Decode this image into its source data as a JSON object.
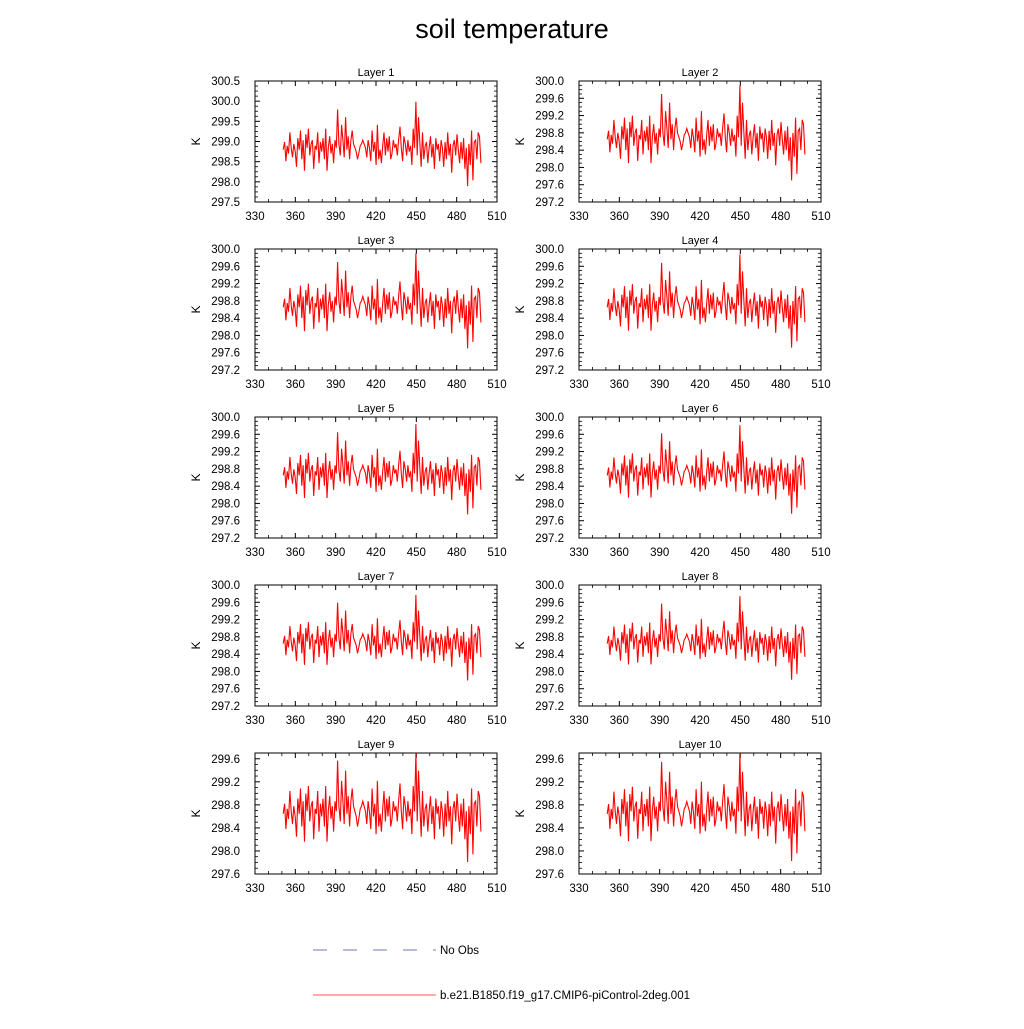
{
  "title": "soil temperature",
  "chart_data": {
    "type": "line",
    "title": "soil temperature",
    "xlim": [
      330,
      510
    ],
    "xticks": [
      330,
      360,
      390,
      420,
      450,
      480,
      510
    ],
    "xticklabels": [
      "330",
      "360",
      "390",
      "420",
      "450",
      "480",
      "510"
    ],
    "x_start": 351,
    "x_end": 498,
    "ylabel": "K",
    "series_name": "b.e21.B1850.f19_g17.CMIP6-piControl-2deg.001",
    "series_color": "#ff0000",
    "panels": [
      {
        "title": "Layer 1",
        "ylim": [
          297.5,
          300.5
        ],
        "yticks": [
          297.5,
          298.0,
          298.5,
          299.0,
          299.5,
          300.0,
          300.5
        ],
        "yticklabels": [
          "297.5",
          "298.0",
          "298.5",
          "299.0",
          "299.5",
          "300.0",
          "300.5"
        ],
        "mean": 298.75,
        "amp": 0.95
      },
      {
        "title": "Layer 2",
        "ylim": [
          297.2,
          300.0
        ],
        "yticks": [
          297.2,
          297.6,
          298.0,
          298.4,
          298.8,
          299.2,
          299.6,
          300.0
        ],
        "yticklabels": [
          "297.2",
          "297.6",
          "298.0",
          "298.4",
          "298.8",
          "299.2",
          "299.6",
          "300.0"
        ],
        "mean": 298.6,
        "amp": 1.0
      },
      {
        "title": "Layer 3",
        "ylim": [
          297.2,
          300.0
        ],
        "yticks": [
          297.2,
          297.6,
          298.0,
          298.4,
          298.8,
          299.2,
          299.6,
          300.0
        ],
        "yticklabels": [
          "297.2",
          "297.6",
          "298.0",
          "298.4",
          "298.8",
          "299.2",
          "299.6",
          "300.0"
        ],
        "mean": 298.6,
        "amp": 1.0
      },
      {
        "title": "Layer 4",
        "ylim": [
          297.2,
          300.0
        ],
        "yticks": [
          297.2,
          297.6,
          298.0,
          298.4,
          298.8,
          299.2,
          299.6,
          300.0
        ],
        "yticklabels": [
          "297.2",
          "297.6",
          "298.0",
          "298.4",
          "298.8",
          "299.2",
          "299.6",
          "300.0"
        ],
        "mean": 298.6,
        "amp": 0.98
      },
      {
        "title": "Layer 5",
        "ylim": [
          297.2,
          300.0
        ],
        "yticks": [
          297.2,
          297.6,
          298.0,
          298.4,
          298.8,
          299.2,
          299.6,
          300.0
        ],
        "yticklabels": [
          "297.2",
          "297.6",
          "298.0",
          "298.4",
          "298.8",
          "299.2",
          "299.6",
          "300.0"
        ],
        "mean": 298.6,
        "amp": 0.95
      },
      {
        "title": "Layer 6",
        "ylim": [
          297.2,
          300.0
        ],
        "yticks": [
          297.2,
          297.6,
          298.0,
          298.4,
          298.8,
          299.2,
          299.6,
          300.0
        ],
        "yticklabels": [
          "297.2",
          "297.6",
          "298.0",
          "298.4",
          "298.8",
          "299.2",
          "299.6",
          "300.0"
        ],
        "mean": 298.6,
        "amp": 0.93
      },
      {
        "title": "Layer 7",
        "ylim": [
          297.2,
          300.0
        ],
        "yticks": [
          297.2,
          297.6,
          298.0,
          298.4,
          298.8,
          299.2,
          299.6,
          300.0
        ],
        "yticklabels": [
          "297.2",
          "297.6",
          "298.0",
          "298.4",
          "298.8",
          "299.2",
          "299.6",
          "300.0"
        ],
        "mean": 298.6,
        "amp": 0.9
      },
      {
        "title": "Layer 8",
        "ylim": [
          297.2,
          300.0
        ],
        "yticks": [
          297.2,
          297.6,
          298.0,
          298.4,
          298.8,
          299.2,
          299.6,
          300.0
        ],
        "yticklabels": [
          "297.2",
          "297.6",
          "298.0",
          "298.4",
          "298.8",
          "299.2",
          "299.6",
          "300.0"
        ],
        "mean": 298.6,
        "amp": 0.88
      },
      {
        "title": "Layer 9",
        "ylim": [
          297.6,
          299.7
        ],
        "yticks": [
          297.6,
          298.0,
          298.4,
          298.8,
          299.2,
          299.6
        ],
        "yticklabels": [
          "297.6",
          "298.0",
          "298.4",
          "298.8",
          "299.2",
          "299.6"
        ],
        "mean": 298.6,
        "amp": 0.88
      },
      {
        "title": "Layer 10",
        "ylim": [
          297.6,
          299.7
        ],
        "yticks": [
          297.6,
          298.0,
          298.4,
          298.8,
          299.2,
          299.6
        ],
        "yticklabels": [
          "297.6",
          "298.0",
          "298.4",
          "298.8",
          "299.2",
          "299.6"
        ],
        "mean": 298.6,
        "amp": 0.86
      }
    ],
    "base_pattern": [
      0.05,
      0.25,
      -0.25,
      0.15,
      -0.05,
      0.5,
      0.1,
      -0.15,
      0.2,
      0.0,
      -0.4,
      0.35,
      0.05,
      0.55,
      -0.2,
      0.3,
      -0.5,
      0.45,
      0.1,
      0.6,
      -0.1,
      0.2,
      0.3,
      -0.45,
      0.15,
      0.05,
      0.5,
      -0.3,
      0.25,
      0.0,
      0.35,
      -0.2,
      0.6,
      -0.5,
      0.1,
      0.4,
      -0.05,
      0.2,
      -0.3,
      0.3,
      0.1,
      1.1,
      0.2,
      -0.1,
      0.7,
      0.3,
      -0.15,
      0.9,
      0.05,
      0.4,
      -0.2,
      0.3,
      0.55,
      0.2,
      0.1,
      0.0,
      -0.2,
      -0.05,
      0.15,
      0.2,
      0.3,
      0.2,
      0.1,
      -0.15,
      0.3,
      0.1,
      -0.25,
      0.55,
      0.0,
      0.25,
      -0.35,
      0.7,
      -0.2,
      0.05,
      -0.3,
      0.15,
      0.5,
      -0.1,
      0.35,
      0.0,
      0.4,
      -0.2,
      -0.05,
      0.3,
      0.1,
      0.2,
      -0.1,
      0.3,
      0.65,
      0.1,
      -0.25,
      0.4,
      0.2,
      -0.1,
      0.3,
      0.0,
      0.15,
      -0.35,
      0.6,
      0.1,
      1.3,
      -0.1,
      0.9,
      0.2,
      -0.4,
      0.5,
      -0.2,
      0.15,
      0.25,
      -0.3,
      0.1,
      0.4,
      -0.15,
      0.2,
      -0.45,
      0.35,
      0.05,
      0.2,
      -0.25,
      0.3,
      0.1,
      -0.4,
      0.25,
      -0.2,
      0.5,
      -0.1,
      0.2,
      -0.55,
      0.15,
      0.3,
      -0.1,
      0.45,
      0.05,
      -0.3,
      0.25,
      -0.2,
      0.35,
      -0.45,
      0.1,
      -0.9,
      0.2,
      -0.35,
      0.55,
      -0.75,
      0.25,
      0.3,
      -0.2,
      0.5,
      0.4,
      -0.3
    ],
    "legend": {
      "position": "bottom-center",
      "entries": [
        {
          "label": "No Obs",
          "color": "#6a7ab0",
          "style": "dashed"
        },
        {
          "label": "b.e21.B1850.f19_g17.CMIP6-piControl-2deg.001",
          "color": "#ff5555",
          "style": "solid"
        }
      ]
    }
  }
}
